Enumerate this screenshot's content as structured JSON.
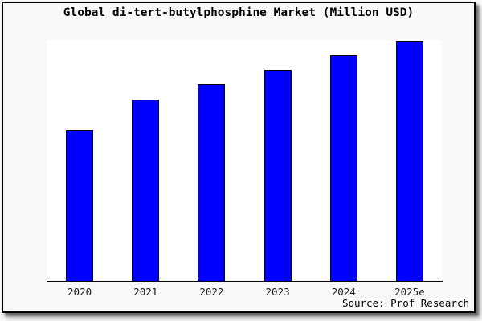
{
  "chart_data": {
    "type": "bar",
    "title": "Global di-tert-butylphosphine Market (Million USD)",
    "categories": [
      "2020",
      "2021",
      "2022",
      "2023",
      "2024",
      "2025e"
    ],
    "values": [
      188,
      226,
      245,
      263,
      281,
      299
    ],
    "values_unit": "relative pixel height (chart shows no y-axis tick labels)",
    "xlabel": "",
    "ylabel": "",
    "ylim": [
      0,
      300
    ],
    "grid": false,
    "legend": false,
    "source_note": "Source: Prof Research"
  },
  "colors": {
    "bar_fill": "#0000ff",
    "bar_border": "#000000",
    "page_background": "#f8f8f8",
    "plot_background": "#ffffff",
    "axis_line": "#000000",
    "text": "#000000"
  }
}
